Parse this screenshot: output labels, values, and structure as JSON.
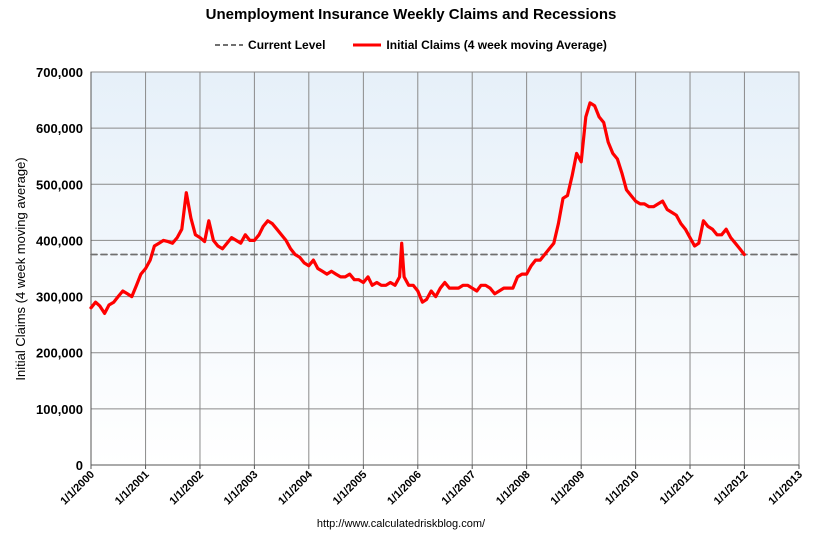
{
  "chart_data": {
    "type": "line",
    "title": "Unemployment Insurance Weekly Claims and Recessions",
    "ylabel": "Initial Claims (4 week moving average)",
    "xlabel": "",
    "ylim": [
      0,
      700000
    ],
    "xlim": [
      "1/1/2000",
      "1/1/2013"
    ],
    "yticks": [
      0,
      100000,
      200000,
      300000,
      400000,
      500000,
      600000,
      700000
    ],
    "ytick_labels": [
      "0",
      "100,000",
      "200,000",
      "300,000",
      "400,000",
      "500,000",
      "600,000",
      "700,000"
    ],
    "xticks": [
      "1/1/2000",
      "1/1/2001",
      "1/1/2002",
      "1/1/2003",
      "1/1/2004",
      "1/1/2005",
      "1/1/2006",
      "1/1/2007",
      "1/1/2008",
      "1/1/2009",
      "1/1/2010",
      "1/1/2011",
      "1/1/2012",
      "1/1/2013"
    ],
    "grid": true,
    "legend_placement": "top",
    "source": "http://www.calculatedriskblog.com/",
    "series": [
      {
        "name": "Current Level",
        "style": "dashed",
        "color": "#707070",
        "x": [
          "1/1/2000",
          "1/1/2013"
        ],
        "values": [
          375000,
          375000
        ]
      },
      {
        "name": "Initial Claims (4 week moving Average)",
        "style": "solid",
        "color": "#ff0000",
        "x": [
          "2000-01-01",
          "2000-02-01",
          "2000-03-01",
          "2000-04-01",
          "2000-05-01",
          "2000-06-01",
          "2000-07-01",
          "2000-08-01",
          "2000-09-01",
          "2000-10-01",
          "2000-11-01",
          "2000-12-01",
          "2001-01-01",
          "2001-02-01",
          "2001-03-01",
          "2001-04-01",
          "2001-05-01",
          "2001-06-01",
          "2001-07-01",
          "2001-08-01",
          "2001-09-01",
          "2001-10-01",
          "2001-11-01",
          "2001-12-01",
          "2002-01-01",
          "2002-02-01",
          "2002-03-01",
          "2002-04-01",
          "2002-05-01",
          "2002-06-01",
          "2002-07-01",
          "2002-08-01",
          "2002-09-01",
          "2002-10-01",
          "2002-11-01",
          "2002-12-01",
          "2003-01-01",
          "2003-02-01",
          "2003-03-01",
          "2003-04-01",
          "2003-05-01",
          "2003-06-01",
          "2003-07-01",
          "2003-08-01",
          "2003-09-01",
          "2003-10-01",
          "2003-11-01",
          "2003-12-01",
          "2004-01-01",
          "2004-02-01",
          "2004-03-01",
          "2004-04-01",
          "2004-05-01",
          "2004-06-01",
          "2004-07-01",
          "2004-08-01",
          "2004-09-01",
          "2004-10-01",
          "2004-11-01",
          "2004-12-01",
          "2005-01-01",
          "2005-02-01",
          "2005-03-01",
          "2005-04-01",
          "2005-05-01",
          "2005-06-01",
          "2005-07-01",
          "2005-08-01",
          "2005-09-01",
          "2005-09-15",
          "2005-10-01",
          "2005-11-01",
          "2005-12-01",
          "2006-01-01",
          "2006-02-01",
          "2006-03-01",
          "2006-04-01",
          "2006-05-01",
          "2006-06-01",
          "2006-07-01",
          "2006-08-01",
          "2006-09-01",
          "2006-10-01",
          "2006-11-01",
          "2006-12-01",
          "2007-01-01",
          "2007-02-01",
          "2007-03-01",
          "2007-04-01",
          "2007-05-01",
          "2007-06-01",
          "2007-07-01",
          "2007-08-01",
          "2007-09-01",
          "2007-10-01",
          "2007-11-01",
          "2007-12-01",
          "2008-01-01",
          "2008-02-01",
          "2008-03-01",
          "2008-04-01",
          "2008-05-01",
          "2008-06-01",
          "2008-07-01",
          "2008-08-01",
          "2008-09-01",
          "2008-10-01",
          "2008-11-01",
          "2008-12-01",
          "2009-01-01",
          "2009-02-01",
          "2009-03-01",
          "2009-04-01",
          "2009-05-01",
          "2009-06-01",
          "2009-07-01",
          "2009-08-01",
          "2009-09-01",
          "2009-10-01",
          "2009-11-01",
          "2009-12-01",
          "2010-01-01",
          "2010-02-01",
          "2010-03-01",
          "2010-04-01",
          "2010-05-01",
          "2010-06-01",
          "2010-07-01",
          "2010-08-01",
          "2010-09-01",
          "2010-10-01",
          "2010-11-01",
          "2010-12-01",
          "2011-01-01",
          "2011-02-01",
          "2011-03-01",
          "2011-04-01",
          "2011-05-01",
          "2011-06-01",
          "2011-07-01",
          "2011-08-01",
          "2011-09-01",
          "2011-10-01",
          "2011-11-01",
          "2011-12-01",
          "2011-12-31"
        ],
        "values": [
          280000,
          290000,
          283000,
          270000,
          285000,
          290000,
          300000,
          310000,
          305000,
          300000,
          320000,
          340000,
          350000,
          365000,
          390000,
          395000,
          400000,
          398000,
          395000,
          405000,
          420000,
          485000,
          440000,
          410000,
          405000,
          398000,
          435000,
          400000,
          390000,
          385000,
          395000,
          405000,
          400000,
          395000,
          410000,
          400000,
          400000,
          410000,
          425000,
          435000,
          430000,
          420000,
          410000,
          400000,
          385000,
          375000,
          370000,
          360000,
          355000,
          365000,
          350000,
          345000,
          340000,
          345000,
          340000,
          335000,
          335000,
          340000,
          330000,
          330000,
          325000,
          335000,
          320000,
          325000,
          320000,
          320000,
          325000,
          320000,
          335000,
          395000,
          335000,
          320000,
          320000,
          310000,
          290000,
          295000,
          310000,
          300000,
          315000,
          325000,
          315000,
          315000,
          315000,
          320000,
          320000,
          315000,
          310000,
          320000,
          320000,
          315000,
          305000,
          310000,
          315000,
          315000,
          315000,
          335000,
          340000,
          340000,
          355000,
          365000,
          365000,
          375000,
          385000,
          395000,
          430000,
          475000,
          480000,
          515000,
          555000,
          540000,
          620000,
          645000,
          640000,
          620000,
          610000,
          575000,
          555000,
          545000,
          520000,
          490000,
          480000,
          470000,
          465000,
          465000,
          460000,
          460000,
          465000,
          470000,
          455000,
          450000,
          445000,
          430000,
          420000,
          405000,
          390000,
          395000,
          435000,
          425000,
          420000,
          410000,
          410000,
          420000,
          405000,
          395000,
          385000,
          375000
        ]
      }
    ]
  }
}
